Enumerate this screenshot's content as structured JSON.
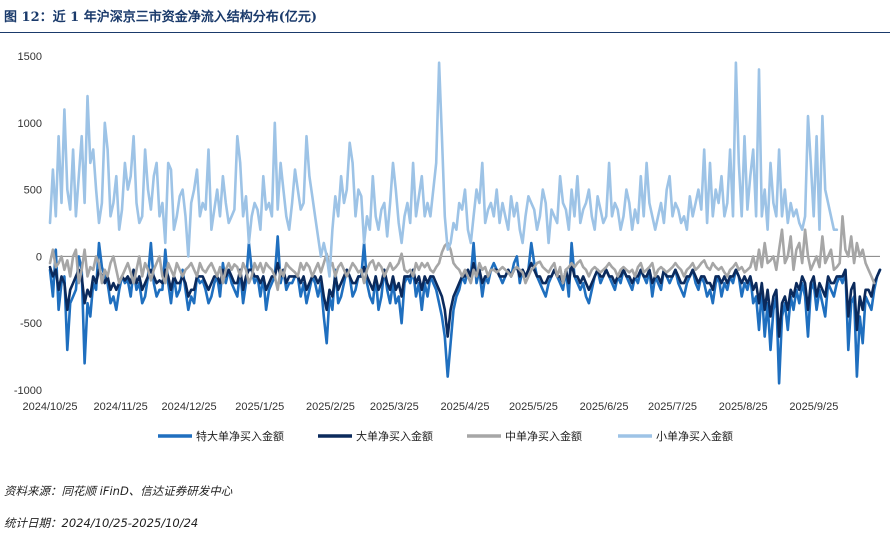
{
  "title": "图 12：近 1 年沪深京三市资金净流入结构分布(亿元)",
  "source_text": "资料来源：同花顺 iFinD、信达证券研发中心",
  "date_text": "统计日期：2024/10/25-2025/10/24",
  "chart_data": {
    "type": "line",
    "title": "图 12：近 1 年沪深京三市资金净流入结构分布(亿元)",
    "ylim": [
      -1000,
      1500
    ],
    "yticks": [
      -1000,
      -500,
      0,
      500,
      1000,
      1500
    ],
    "x_start": "2024-10-25",
    "x_end": "2025-10-24",
    "xtick_labels": [
      "2024/10/25",
      "2024/11/25",
      "2024/12/25",
      "2025/1/25",
      "2025/2/25",
      "2025/3/25",
      "2025/4/25",
      "2025/5/25",
      "2025/6/25",
      "2025/7/25",
      "2025/8/25",
      "2025/9/25"
    ],
    "xlabel": "",
    "ylabel": "",
    "grid": false,
    "legend_position": "bottom",
    "series": [
      {
        "name": "特大单净买入金额",
        "color": "#1f6fbf",
        "width": 2.6,
        "values": [
          -100,
          -300,
          50,
          -400,
          -200,
          -150,
          -700,
          -350,
          -300,
          -250,
          0,
          -100,
          -800,
          -350,
          -450,
          -200,
          -250,
          100,
          -80,
          -150,
          -200,
          -350,
          -300,
          -400,
          -250,
          -150,
          -200,
          -180,
          -300,
          -100,
          -250,
          -200,
          -350,
          -300,
          -150,
          100,
          -200,
          -300,
          -250,
          -250,
          50,
          -200,
          -350,
          -150,
          -300,
          -250,
          -100,
          -250,
          -400,
          -300,
          -350,
          -150,
          -200,
          -180,
          -250,
          -350,
          -300,
          -200,
          -150,
          -300,
          -50,
          -200,
          -100,
          -200,
          -250,
          -300,
          -100,
          -350,
          -200,
          100,
          -100,
          -200,
          -150,
          -300,
          -150,
          -400,
          -250,
          -200,
          -150,
          150,
          -200,
          -100,
          -250,
          -200,
          -200,
          -150,
          -150,
          -300,
          -200,
          -350,
          -250,
          -150,
          -200,
          -300,
          -200,
          -450,
          -650,
          -300,
          -400,
          -100,
          -350,
          -300,
          -200,
          -100,
          -150,
          -300,
          -250,
          -150,
          -150,
          100,
          -200,
          -300,
          -350,
          -150,
          -400,
          -300,
          -100,
          -250,
          -350,
          -200,
          -350,
          -300,
          -500,
          -200,
          -150,
          -200,
          -100,
          -300,
          -200,
          -400,
          -200,
          -300,
          -150,
          -200,
          -250,
          -350,
          -450,
          -600,
          -900,
          -650,
          -400,
          -300,
          -250,
          -150,
          -200,
          -100,
          -150,
          100,
          -200,
          -100,
          -300,
          -150,
          -200,
          -100,
          -50,
          -100,
          -150,
          -200,
          -150,
          -100,
          -150,
          -50,
          0,
          -200,
          -100,
          -150,
          -100,
          100,
          -50,
          -150,
          -200,
          -250,
          -300,
          -200,
          -150,
          -100,
          -150,
          -200,
          -250,
          -100,
          -300,
          100,
          -150,
          -200,
          -250,
          -200,
          -300,
          -350,
          -250,
          -150,
          -100,
          -200,
          -150,
          -100,
          -150,
          -200,
          -250,
          -150,
          -200,
          -100,
          -150,
          -200,
          -250,
          -150,
          -200,
          -100,
          -150,
          -200,
          -100,
          -300,
          -150,
          -200,
          -250,
          -100,
          -150,
          -200,
          -150,
          -100,
          -200,
          -250,
          -300,
          -200,
          -150,
          -100,
          -200,
          -250,
          -150,
          -200,
          -300,
          -250,
          -350,
          -200,
          -150,
          -300,
          -200,
          -250,
          -150,
          -200,
          -100,
          -150,
          -300,
          -200,
          -250,
          -150,
          -350,
          -300,
          -550,
          -250,
          -600,
          -350,
          -700,
          -400,
          -300,
          -950,
          -450,
          -350,
          -550,
          -300,
          -400,
          -250,
          -350,
          -200,
          -300,
          -600,
          -250,
          -200,
          -400,
          -250,
          -350,
          -450,
          -200,
          -250,
          -300,
          -200,
          -150,
          -200,
          -100,
          -700,
          -350,
          -300,
          -900,
          -450,
          -650,
          -300,
          -350,
          -400,
          -250,
          -150,
          -100
        ]
      },
      {
        "name": "大单净买入金额",
        "color": "#0b2a5c",
        "width": 2.6,
        "values": [
          -80,
          -150,
          -100,
          -250,
          -150,
          -200,
          -400,
          -250,
          -200,
          -150,
          -100,
          -150,
          -350,
          -250,
          -300,
          -150,
          -200,
          -100,
          -150,
          -200,
          -150,
          -250,
          -200,
          -250,
          -200,
          -150,
          -180,
          -150,
          -200,
          -100,
          -200,
          -150,
          -250,
          -200,
          -150,
          -100,
          -150,
          -200,
          -180,
          -200,
          -100,
          -150,
          -250,
          -150,
          -200,
          -200,
          -150,
          -200,
          -300,
          -250,
          -250,
          -150,
          -150,
          -150,
          -200,
          -250,
          -200,
          -150,
          -150,
          -200,
          -100,
          -150,
          -100,
          -150,
          -200,
          -200,
          -100,
          -250,
          -150,
          -100,
          -100,
          -150,
          -150,
          -200,
          -150,
          -250,
          -200,
          -150,
          -150,
          -50,
          -150,
          -100,
          -200,
          -150,
          -150,
          -150,
          -150,
          -200,
          -150,
          -250,
          -200,
          -150,
          -150,
          -200,
          -150,
          -300,
          -400,
          -250,
          -300,
          -150,
          -250,
          -200,
          -150,
          -100,
          -150,
          -200,
          -200,
          -150,
          -150,
          -80,
          -150,
          -200,
          -250,
          -150,
          -250,
          -200,
          -100,
          -200,
          -250,
          -150,
          -250,
          -200,
          -300,
          -150,
          -150,
          -150,
          -100,
          -200,
          -150,
          -250,
          -150,
          -200,
          -150,
          -150,
          -200,
          -250,
          -300,
          -400,
          -600,
          -400,
          -300,
          -250,
          -200,
          -150,
          -150,
          -100,
          -150,
          -50,
          -150,
          -100,
          -200,
          -150,
          -150,
          -100,
          -100,
          -100,
          -150,
          -150,
          -150,
          -100,
          -150,
          -100,
          -80,
          -150,
          -100,
          -150,
          -100,
          -50,
          -100,
          -150,
          -150,
          -200,
          -200,
          -150,
          -150,
          -100,
          -150,
          -150,
          -200,
          -100,
          -200,
          -50,
          -150,
          -150,
          -200,
          -150,
          -200,
          -250,
          -200,
          -150,
          -100,
          -150,
          -150,
          -100,
          -150,
          -150,
          -200,
          -150,
          -150,
          -100,
          -150,
          -150,
          -200,
          -150,
          -150,
          -100,
          -150,
          -150,
          -100,
          -200,
          -150,
          -150,
          -200,
          -100,
          -150,
          -150,
          -150,
          -100,
          -150,
          -200,
          -200,
          -150,
          -150,
          -100,
          -150,
          -200,
          -150,
          -150,
          -200,
          -200,
          -250,
          -150,
          -150,
          -200,
          -150,
          -200,
          -150,
          -150,
          -100,
          -150,
          -200,
          -150,
          -200,
          -150,
          -250,
          -200,
          -350,
          -200,
          -400,
          -250,
          -450,
          -300,
          -250,
          -600,
          -350,
          -300,
          -400,
          -250,
          -300,
          -200,
          -250,
          -150,
          -200,
          -400,
          -200,
          -150,
          -300,
          -200,
          -250,
          -300,
          -150,
          -200,
          -200,
          -150,
          -150,
          -150,
          -100,
          -450,
          -250,
          -200,
          -550,
          -300,
          -400,
          -250,
          -250,
          -300,
          -200,
          -150,
          -100
        ]
      },
      {
        "name": "中单净买入金额",
        "color": "#a6a6a6",
        "width": 2.6,
        "values": [
          -50,
          50,
          -80,
          -50,
          0,
          -100,
          -30,
          -150,
          0,
          50,
          -200,
          -100,
          50,
          -150,
          -80,
          -100,
          0,
          -50,
          -200,
          -100,
          -150,
          -50,
          0,
          -100,
          -200,
          -150,
          -100,
          -50,
          -120,
          -200,
          -100,
          0,
          -150,
          -50,
          -100,
          -180,
          -100,
          -50,
          0,
          -150,
          -200,
          -50,
          -100,
          -150,
          -50,
          -100,
          -150,
          -100,
          -80,
          -50,
          -100,
          -150,
          -50,
          -100,
          -120,
          -80,
          -50,
          -100,
          -150,
          -80,
          -200,
          -100,
          -50,
          -100,
          -60,
          -80,
          -150,
          -50,
          -100,
          -200,
          -150,
          -50,
          -100,
          -50,
          -120,
          -50,
          -80,
          -100,
          -150,
          -250,
          -100,
          -150,
          -50,
          -80,
          -100,
          -120,
          -150,
          -50,
          -100,
          -50,
          -80,
          -150,
          -100,
          -50,
          -120,
          -50,
          20,
          -80,
          -50,
          -150,
          -80,
          -50,
          -100,
          -150,
          -100,
          -50,
          -80,
          -120,
          -100,
          -200,
          -100,
          -50,
          -30,
          -100,
          -50,
          -80,
          -150,
          -100,
          -50,
          -100,
          -80,
          -50,
          20,
          -100,
          -120,
          -100,
          -150,
          -50,
          -100,
          -50,
          -80,
          -50,
          -100,
          -120,
          -80,
          -50,
          30,
          80,
          100,
          50,
          -50,
          -80,
          -100,
          -150,
          -100,
          -150,
          -200,
          -100,
          -150,
          -50,
          -100,
          -80,
          -150,
          -100,
          -100,
          -120,
          -100,
          -80,
          -100,
          -120,
          -150,
          -100,
          -80,
          -100,
          -120,
          -200,
          -150,
          -100,
          -80,
          -50,
          -40,
          -80,
          -100,
          -120,
          -80,
          -50,
          -150,
          -80,
          -200,
          -100,
          -80,
          -50,
          -80,
          -50,
          -30,
          -80,
          -100,
          -150,
          -100,
          -80,
          -100,
          -120,
          -100,
          -80,
          -50,
          -80,
          -100,
          -150,
          -100,
          -80,
          -100,
          -120,
          -100,
          -150,
          -80,
          -50,
          -120,
          -100,
          -80,
          -50,
          -150,
          -100,
          -80,
          -100,
          -120,
          -100,
          -80,
          -50,
          -80,
          -100,
          -150,
          -100,
          -80,
          -50,
          -100,
          -80,
          -50,
          -30,
          -80,
          -100,
          -50,
          -80,
          -100,
          -80,
          -120,
          -150,
          -100,
          -80,
          -50,
          -100,
          -80,
          -120,
          -100,
          -80,
          0,
          -100,
          50,
          -80,
          100,
          -50,
          -30,
          0,
          -100,
          50,
          200,
          -50,
          0,
          150,
          -100,
          50,
          100,
          -50,
          200,
          0,
          -100,
          -50,
          0,
          -80,
          150,
          -50,
          0,
          50,
          -100,
          -80,
          -50,
          300,
          50,
          0,
          150,
          -50,
          100,
          0,
          50,
          -50,
          -100,
          -150,
          -200
        ]
      },
      {
        "name": "小单净买入金额",
        "color": "#9dc3e6",
        "width": 2.6,
        "values": [
          250,
          650,
          300,
          900,
          400,
          1100,
          500,
          350,
          800,
          300,
          600,
          900,
          400,
          1200,
          700,
          800,
          500,
          250,
          400,
          1000,
          800,
          300,
          400,
          600,
          200,
          350,
          700,
          500,
          600,
          900,
          400,
          250,
          300,
          800,
          500,
          350,
          600,
          700,
          300,
          400,
          100,
          700,
          650,
          200,
          300,
          450,
          500,
          300,
          0,
          400,
          500,
          650,
          300,
          400,
          350,
          800,
          200,
          350,
          500,
          300,
          600,
          400,
          250,
          300,
          350,
          900,
          700,
          300,
          450,
          100,
          300,
          400,
          350,
          200,
          600,
          350,
          400,
          300,
          1000,
          350,
          700,
          500,
          300,
          200,
          400,
          650,
          500,
          350,
          400,
          900,
          600,
          450,
          300,
          150,
          0,
          100,
          0,
          -150,
          200,
          450,
          300,
          600,
          400,
          500,
          850,
          700,
          300,
          500,
          450,
          100,
          300,
          200,
          600,
          300,
          200,
          350,
          400,
          150,
          400,
          700,
          500,
          250,
          100,
          300,
          400,
          250,
          700,
          300,
          450,
          600,
          300,
          400,
          300,
          500,
          700,
          1450,
          900,
          300,
          50,
          100,
          250,
          200,
          400,
          350,
          500,
          200,
          100,
          300,
          500,
          400,
          700,
          250,
          350,
          400,
          300,
          500,
          250,
          400,
          300,
          200,
          450,
          300,
          400,
          200,
          100,
          300,
          450,
          400,
          350,
          200,
          300,
          500,
          400,
          100,
          350,
          300,
          250,
          600,
          400,
          350,
          200,
          500,
          300,
          600,
          250,
          350,
          400,
          500,
          300,
          200,
          450,
          350,
          250,
          300,
          700,
          300,
          400,
          350,
          200,
          300,
          500,
          400,
          200,
          350,
          250,
          600,
          300,
          700,
          400,
          300,
          200,
          300,
          400,
          250,
          500,
          600,
          300,
          400,
          350,
          250,
          300,
          200,
          450,
          300,
          400,
          500,
          350,
          800,
          250,
          700,
          300,
          500,
          400,
          600,
          300,
          400,
          800,
          300,
          1450,
          700,
          300,
          900,
          350,
          600,
          800,
          300,
          1400,
          300,
          500,
          200,
          700,
          400,
          300,
          800,
          300,
          500,
          250,
          400,
          300,
          350,
          250,
          200,
          300,
          1050,
          700,
          300,
          900,
          200,
          1050,
          500,
          400,
          300,
          200,
          200
        ]
      }
    ]
  }
}
